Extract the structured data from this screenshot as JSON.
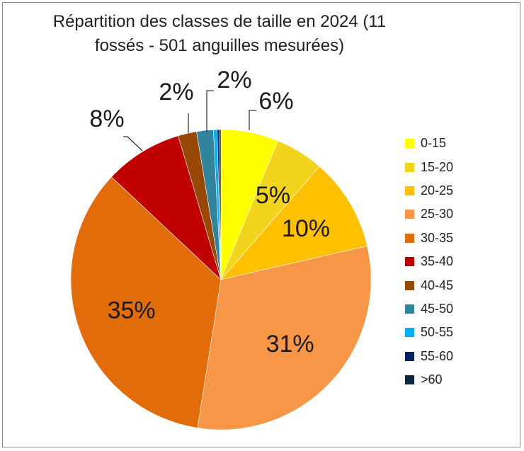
{
  "chart_data": {
    "type": "pie",
    "title": "Répartition des classes de taille en 2024 (11 fossés - 501 anguilles mesurées)",
    "categories": [
      "0-15",
      "15-20",
      "20-25",
      "25-30",
      "30-35",
      "35-40",
      "40-45",
      "45-50",
      "50-55",
      "55-60",
      ">60"
    ],
    "values": [
      6.2,
      5.2,
      10.0,
      31.1,
      34.5,
      8.4,
      2.0,
      1.8,
      0.4,
      0.2,
      0.2
    ],
    "data_labels": [
      "6%",
      "5%",
      "10%",
      "31%",
      "35%",
      "8%",
      "2%",
      "2%",
      "",
      "",
      ""
    ],
    "colors": [
      "#ffff00",
      "#f2d41c",
      "#ffc000",
      "#f79646",
      "#e26b0a",
      "#c00000",
      "#974706",
      "#31849b",
      "#00b0f0",
      "#002060",
      "#0f243e"
    ],
    "legend_position": "right"
  }
}
